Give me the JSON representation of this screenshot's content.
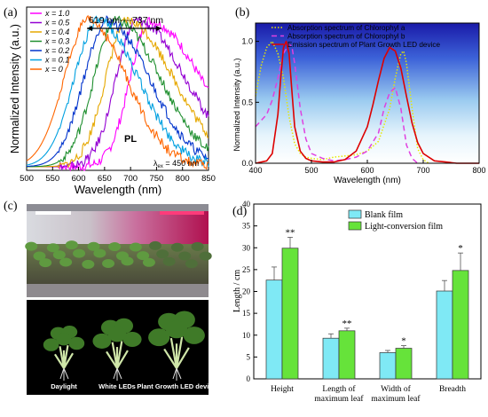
{
  "panels": {
    "a": {
      "letter": "(a)"
    },
    "b": {
      "letter": "(b)"
    },
    "c": {
      "letter": "(c)"
    },
    "d": {
      "letter": "(d)"
    }
  },
  "panel_c": {
    "labels": [
      "Daylight",
      "White LEDs",
      "Plant Growth LED device"
    ]
  },
  "chart_data": [
    {
      "id": "a",
      "type": "line",
      "xlabel": "Wavelength (nm)",
      "ylabel": "Normalized Intensity (a.u.)",
      "xlim": [
        500,
        850
      ],
      "ylim": [
        0,
        1.12
      ],
      "xticks": [
        500,
        550,
        600,
        650,
        700,
        750,
        800,
        850
      ],
      "yticks": [],
      "grid": false,
      "legend": "top-left",
      "annotations": {
        "range": "619 nm----737 nm",
        "pl": "PL",
        "excitation_prefix": "λ",
        "excitation_sub": "ex",
        "excitation_value": " = 450 nm"
      },
      "series": [
        {
          "name": "x = 1.0",
          "peak": 737,
          "color": "#ff00ff"
        },
        {
          "name": "x = 0.5",
          "peak": 712,
          "color": "#9400d3"
        },
        {
          "name": "x = 0.4",
          "peak": 693,
          "color": "#e6a800"
        },
        {
          "name": "x = 0.3",
          "peak": 672,
          "color": "#1f8f2f"
        },
        {
          "name": "x = 0.2",
          "peak": 654,
          "color": "#0033cc"
        },
        {
          "name": "x = 0.1",
          "peak": 637,
          "color": "#00a0e0"
        },
        {
          "name": "x = 0",
          "peak": 619,
          "color": "#ff6600"
        }
      ]
    },
    {
      "id": "b",
      "type": "line",
      "xlabel": "Wavelength (nm)",
      "ylabel": "Normalized Intensity (a.u.)",
      "xlim": [
        400,
        800
      ],
      "ylim": [
        0,
        1.15
      ],
      "xticks": [
        400,
        500,
        600,
        700,
        800
      ],
      "yticks": [
        0.0,
        0.5,
        1.0
      ],
      "grid": false,
      "legend": "top",
      "series": [
        {
          "name": "Absorption spectrum of Chlorophyl a",
          "color": "#e8e800",
          "style": "dotted",
          "x": [
            400,
            410,
            420,
            430,
            440,
            450,
            460,
            470,
            480,
            490,
            500,
            520,
            540,
            560,
            580,
            600,
            620,
            640,
            650,
            660,
            665,
            670,
            680,
            690,
            700,
            710
          ],
          "y": [
            0.55,
            0.8,
            0.95,
            1.0,
            0.9,
            0.7,
            0.38,
            0.16,
            0.08,
            0.05,
            0.04,
            0.03,
            0.05,
            0.06,
            0.07,
            0.1,
            0.18,
            0.45,
            0.7,
            0.9,
            0.92,
            0.82,
            0.45,
            0.12,
            0.03,
            0.0
          ]
        },
        {
          "name": "Absorption spectrum of Chlorophyl b",
          "color": "#e040e0",
          "style": "dashed",
          "x": [
            400,
            420,
            430,
            440,
            450,
            460,
            465,
            470,
            480,
            490,
            500,
            520,
            540,
            560,
            580,
            600,
            620,
            630,
            640,
            650,
            660,
            670,
            680,
            690
          ],
          "y": [
            0.3,
            0.4,
            0.52,
            0.7,
            0.9,
            0.98,
            0.96,
            0.82,
            0.45,
            0.2,
            0.08,
            0.04,
            0.02,
            0.03,
            0.05,
            0.1,
            0.25,
            0.45,
            0.58,
            0.62,
            0.45,
            0.15,
            0.04,
            0.0
          ]
        },
        {
          "name": "Emission spectrum of Plant Growth LED device",
          "color": "#dd0000",
          "style": "solid",
          "x": [
            400,
            420,
            430,
            440,
            445,
            450,
            455,
            460,
            465,
            470,
            480,
            490,
            500,
            520,
            540,
            560,
            580,
            600,
            610,
            620,
            630,
            640,
            650,
            660,
            670,
            680,
            690,
            700,
            720,
            740,
            760,
            800
          ],
          "y": [
            0.0,
            0.02,
            0.08,
            0.4,
            0.7,
            0.95,
            1.0,
            0.9,
            0.6,
            0.3,
            0.1,
            0.04,
            0.02,
            0.01,
            0.01,
            0.03,
            0.1,
            0.3,
            0.48,
            0.68,
            0.86,
            0.95,
            0.92,
            0.78,
            0.55,
            0.33,
            0.17,
            0.08,
            0.02,
            0.01,
            0.0,
            0.0
          ]
        }
      ]
    },
    {
      "id": "d",
      "type": "bar",
      "xlabel": "",
      "ylabel": "Length / cm",
      "ylim": [
        0,
        40
      ],
      "yticks": [
        0,
        5,
        10,
        15,
        20,
        25,
        30,
        35,
        40
      ],
      "grid": false,
      "legend": "top-center",
      "categories": [
        "Height",
        "Length of maximum leaf",
        "Width of maximum leaf",
        "Breadth"
      ],
      "category_lines": [
        [
          "Height"
        ],
        [
          "Length of",
          "maximum leaf"
        ],
        [
          "Width of",
          "maximum leaf"
        ],
        [
          "Breadth"
        ]
      ],
      "series": [
        {
          "name": "Blank film",
          "color": "#7fe9f5",
          "values": [
            22.6,
            9.3,
            6.0,
            20.1
          ],
          "errors": [
            3.0,
            1.0,
            0.5,
            2.4
          ]
        },
        {
          "name": "Light-conversion film",
          "color": "#66e33a",
          "values": [
            29.9,
            11.0,
            7.0,
            24.8
          ],
          "errors": [
            2.5,
            0.6,
            0.6,
            4.0
          ]
        }
      ],
      "significance": [
        "**",
        "**",
        "*",
        "*"
      ]
    }
  ]
}
